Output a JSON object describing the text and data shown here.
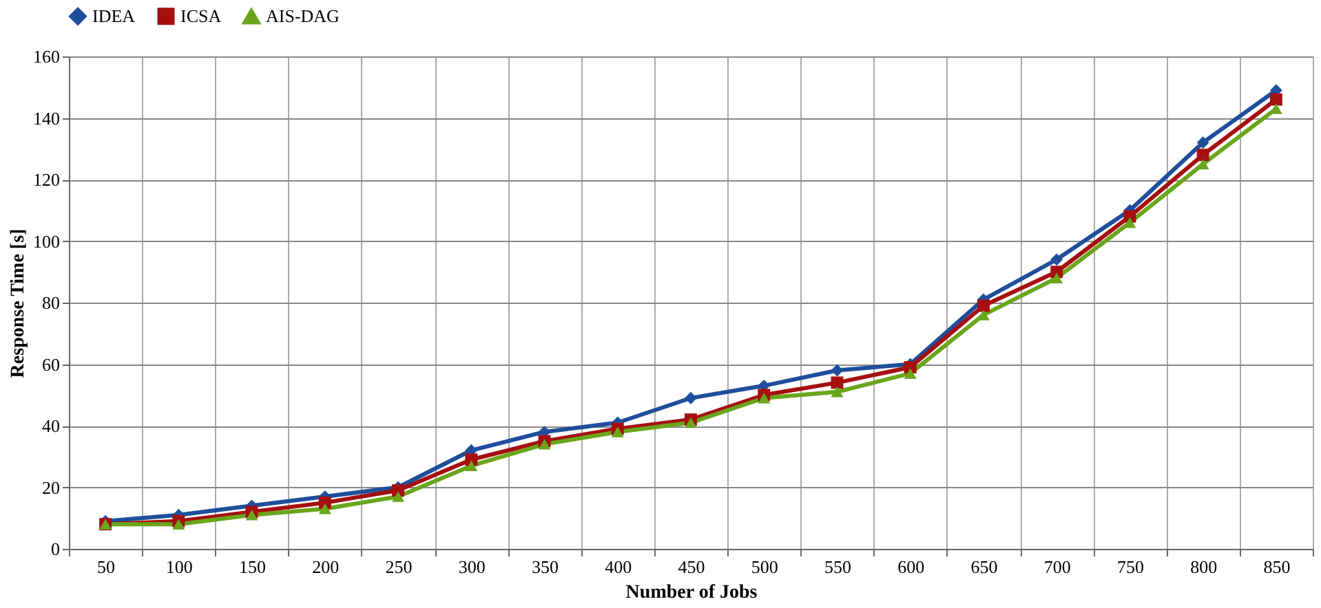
{
  "chart_data": {
    "type": "line",
    "xlabel": "Number of Jobs",
    "ylabel": "Response Time [s]",
    "categories": [
      "50",
      "100",
      "150",
      "200",
      "250",
      "300",
      "350",
      "400",
      "450",
      "500",
      "550",
      "600",
      "650",
      "700",
      "750",
      "800",
      "850"
    ],
    "series": [
      {
        "name": "IDEA",
        "color": "#1f4e9c",
        "marker": "diamond",
        "values": [
          9,
          11,
          14,
          17,
          20,
          32,
          38,
          41,
          49,
          53,
          58,
          60,
          81,
          94,
          110,
          132,
          149
        ]
      },
      {
        "name": "ICSA",
        "color": "#a50f0f",
        "marker": "square",
        "values": [
          8,
          9,
          12,
          15,
          19,
          29,
          35,
          39,
          42,
          50,
          54,
          59,
          79,
          90,
          108,
          128,
          146
        ]
      },
      {
        "name": "AIS-DAG",
        "color": "#6aa51c",
        "marker": "triangle",
        "values": [
          8,
          8,
          11,
          13,
          17,
          27,
          34,
          38,
          41,
          49,
          51,
          57,
          76,
          88,
          106,
          125,
          143
        ]
      }
    ],
    "line_style": "solid",
    "ylim": [
      0,
      160
    ],
    "yticks": [
      0,
      20,
      40,
      60,
      80,
      100,
      120,
      140,
      160
    ],
    "grid": true,
    "legend": "top"
  }
}
